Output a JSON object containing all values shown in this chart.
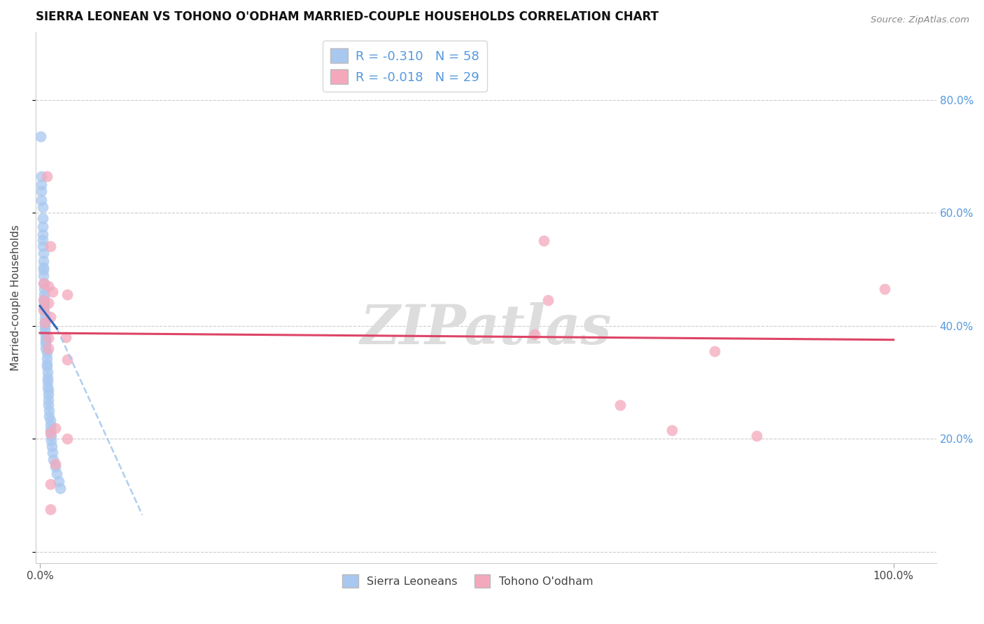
{
  "title": "SIERRA LEONEAN VS TOHONO O'ODHAM MARRIED-COUPLE HOUSEHOLDS CORRELATION CHART",
  "source": "Source: ZipAtlas.com",
  "ylabel": "Married-couple Households",
  "legend": {
    "blue_label": "R = -0.310   N = 58",
    "pink_label": "R = -0.018   N = 29"
  },
  "bottom_legend": [
    "Sierra Leoneans",
    "Tohono O'odham"
  ],
  "blue_color": "#A8C8F0",
  "pink_color": "#F4A8BC",
  "blue_line_color": "#3366BB",
  "pink_line_color": "#DD4466",
  "blue_scatter": [
    [
      0.001,
      0.735
    ],
    [
      0.002,
      0.665
    ],
    [
      0.002,
      0.65
    ],
    [
      0.002,
      0.638
    ],
    [
      0.002,
      0.622
    ],
    [
      0.003,
      0.61
    ],
    [
      0.003,
      0.59
    ],
    [
      0.003,
      0.575
    ],
    [
      0.003,
      0.562
    ],
    [
      0.003,
      0.552
    ],
    [
      0.003,
      0.54
    ],
    [
      0.004,
      0.528
    ],
    [
      0.004,
      0.515
    ],
    [
      0.004,
      0.504
    ],
    [
      0.004,
      0.498
    ],
    [
      0.004,
      0.488
    ],
    [
      0.005,
      0.475
    ],
    [
      0.005,
      0.465
    ],
    [
      0.005,
      0.455
    ],
    [
      0.005,
      0.448
    ],
    [
      0.005,
      0.44
    ],
    [
      0.005,
      0.432
    ],
    [
      0.006,
      0.422
    ],
    [
      0.006,
      0.413
    ],
    [
      0.006,
      0.405
    ],
    [
      0.006,
      0.4
    ],
    [
      0.006,
      0.393
    ],
    [
      0.006,
      0.388
    ],
    [
      0.007,
      0.38
    ],
    [
      0.007,
      0.373
    ],
    [
      0.007,
      0.368
    ],
    [
      0.007,
      0.36
    ],
    [
      0.008,
      0.352
    ],
    [
      0.008,
      0.343
    ],
    [
      0.008,
      0.333
    ],
    [
      0.008,
      0.327
    ],
    [
      0.009,
      0.318
    ],
    [
      0.009,
      0.308
    ],
    [
      0.009,
      0.302
    ],
    [
      0.009,
      0.292
    ],
    [
      0.01,
      0.285
    ],
    [
      0.01,
      0.278
    ],
    [
      0.01,
      0.268
    ],
    [
      0.01,
      0.26
    ],
    [
      0.011,
      0.25
    ],
    [
      0.011,
      0.24
    ],
    [
      0.012,
      0.232
    ],
    [
      0.012,
      0.224
    ],
    [
      0.012,
      0.215
    ],
    [
      0.013,
      0.205
    ],
    [
      0.013,
      0.196
    ],
    [
      0.014,
      0.186
    ],
    [
      0.015,
      0.175
    ],
    [
      0.016,
      0.163
    ],
    [
      0.018,
      0.15
    ],
    [
      0.02,
      0.138
    ],
    [
      0.022,
      0.125
    ],
    [
      0.024,
      0.112
    ]
  ],
  "pink_scatter": [
    [
      0.008,
      0.665
    ],
    [
      0.004,
      0.475
    ],
    [
      0.004,
      0.445
    ],
    [
      0.004,
      0.428
    ],
    [
      0.006,
      0.405
    ],
    [
      0.01,
      0.47
    ],
    [
      0.01,
      0.44
    ],
    [
      0.01,
      0.378
    ],
    [
      0.01,
      0.36
    ],
    [
      0.012,
      0.54
    ],
    [
      0.015,
      0.46
    ],
    [
      0.012,
      0.415
    ],
    [
      0.012,
      0.21
    ],
    [
      0.018,
      0.218
    ],
    [
      0.018,
      0.155
    ],
    [
      0.012,
      0.12
    ],
    [
      0.012,
      0.075
    ],
    [
      0.03,
      0.38
    ],
    [
      0.032,
      0.455
    ],
    [
      0.032,
      0.34
    ],
    [
      0.032,
      0.2
    ],
    [
      0.58,
      0.385
    ],
    [
      0.59,
      0.55
    ],
    [
      0.595,
      0.445
    ],
    [
      0.68,
      0.26
    ],
    [
      0.74,
      0.215
    ],
    [
      0.79,
      0.355
    ],
    [
      0.84,
      0.205
    ],
    [
      0.99,
      0.465
    ]
  ],
  "blue_trendline_solid": [
    [
      0.0,
      0.435
    ],
    [
      0.02,
      0.395
    ]
  ],
  "blue_trendline_dashed": [
    [
      0.02,
      0.395
    ],
    [
      0.12,
      0.065
    ]
  ],
  "pink_trendline": [
    [
      0.0,
      0.387
    ],
    [
      1.0,
      0.375
    ]
  ],
  "xlim": [
    -0.005,
    1.05
  ],
  "ylim": [
    -0.02,
    0.92
  ],
  "xticks": [
    0.0,
    1.0
  ],
  "xticklabels": [
    "0.0%",
    "100.0%"
  ],
  "yticks_right": [
    0.2,
    0.4,
    0.6,
    0.8
  ],
  "yticklabels_right": [
    "20.0%",
    "40.0%",
    "60.0%",
    "80.0%"
  ],
  "grid_color": "#CCCCCC",
  "watermark": "ZIPatlas",
  "watermark_color": "#DDDDDD",
  "title_fontsize": 12,
  "tick_label_color_right": "#5599DD",
  "bottom_legend_items": [
    {
      "label": "Sierra Leoneans",
      "color": "#A8C8F0"
    },
    {
      "label": "Tohono O'odham",
      "color": "#F4A8BC"
    }
  ]
}
